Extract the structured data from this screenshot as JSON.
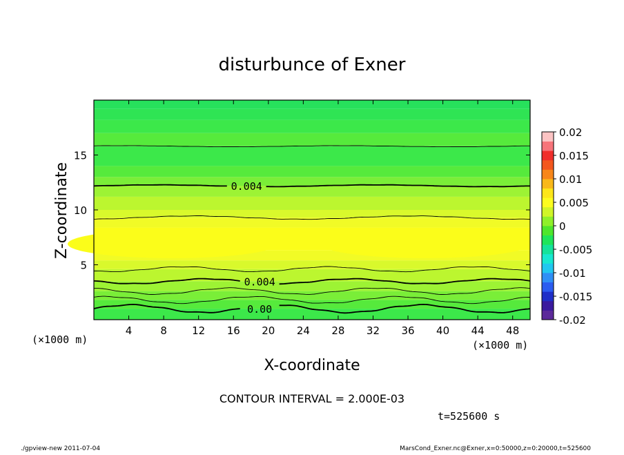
{
  "chart_data": {
    "type": "heatmap",
    "title": "disturbunce of Exner",
    "xlabel": "X-coordinate",
    "ylabel": "Z-coordinate",
    "x_unit_left": "(×1000 m)",
    "x_unit_right": "(×1000 m)",
    "xlim": [
      0,
      50
    ],
    "ylim": [
      0,
      20
    ],
    "x_ticks": [
      4,
      8,
      12,
      16,
      20,
      24,
      28,
      32,
      36,
      40,
      44,
      48
    ],
    "y_ticks": [
      5,
      10,
      15
    ],
    "colorbar": {
      "ticks": [
        "0.02",
        "0.015",
        "0.01",
        "0.005",
        "0",
        "-0.005",
        "-0.01",
        "-0.015",
        "-0.02"
      ],
      "min": -0.02,
      "max": 0.02,
      "interval": 0.0025,
      "colors": [
        "#5c2a9a",
        "#3a1a9e",
        "#1f2fc8",
        "#2b5cf0",
        "#2f8ff6",
        "#21c7f0",
        "#17e8d0",
        "#14e39a",
        "#1ee55a",
        "#4ee62c",
        "#8ff02a",
        "#d0f528",
        "#fcfd1f",
        "#fde61a",
        "#f9b81a",
        "#f7861a",
        "#f3571e",
        "#f02e2b",
        "#f7747a",
        "#fcc3c3"
      ]
    },
    "band_levels": {
      "z": [
        0,
        1.0,
        1.8,
        2.6,
        3.5,
        4.6,
        5.4,
        6.3,
        8.4,
        9.3,
        10.0,
        11.2,
        12.2,
        13.0,
        14.0,
        15.0,
        15.8,
        17.0,
        18.2,
        19.2,
        20.0
      ],
      "colors": [
        "#3ce84a",
        "#56ea3c",
        "#7aee38",
        "#9df334",
        "#bcf62f",
        "#d9f92c",
        "#f1fb26",
        "#fbfd1a",
        "#f1fb26",
        "#d9f92c",
        "#bcf62f",
        "#9df334",
        "#7aee38",
        "#56ea3c",
        "#3ce84a",
        "#3ce84a",
        "#56ea3c",
        "#3ce84a",
        "#2fe454",
        "#27e15c"
      ]
    },
    "contours": [
      {
        "z": 1.0,
        "label": "0.00",
        "label_x": 19,
        "thick": true,
        "amp": 0.35,
        "wave": 3
      },
      {
        "z": 1.8,
        "label": "",
        "thick": false,
        "amp": 0.3,
        "wave": 3
      },
      {
        "z": 2.6,
        "label": "",
        "thick": false,
        "amp": 0.28,
        "wave": 3
      },
      {
        "z": 3.5,
        "label": "0.004",
        "label_x": 19,
        "thick": true,
        "amp": 0.22,
        "wave": 3
      },
      {
        "z": 4.6,
        "label": "",
        "thick": false,
        "amp": 0.22,
        "wave": 3
      },
      {
        "z": 9.3,
        "label": "",
        "thick": false,
        "amp": 0.15,
        "wave": 2
      },
      {
        "z": 12.2,
        "label": "0.004",
        "label_x": 17.5,
        "thick": true,
        "amp": 0.08,
        "wave": 2
      },
      {
        "z": 15.8,
        "label": "",
        "thick": false,
        "amp": 0.05,
        "wave": 2
      }
    ],
    "contour_interval_text": "CONTOUR INTERVAL = 2.000E-03",
    "time_text": "t=525600 s"
  },
  "footer": {
    "left": "./gpview-new   2011-07-04",
    "right": "MarsCond_Exner.nc@Exner,x=0:50000,z=0:20000,t=525600"
  }
}
